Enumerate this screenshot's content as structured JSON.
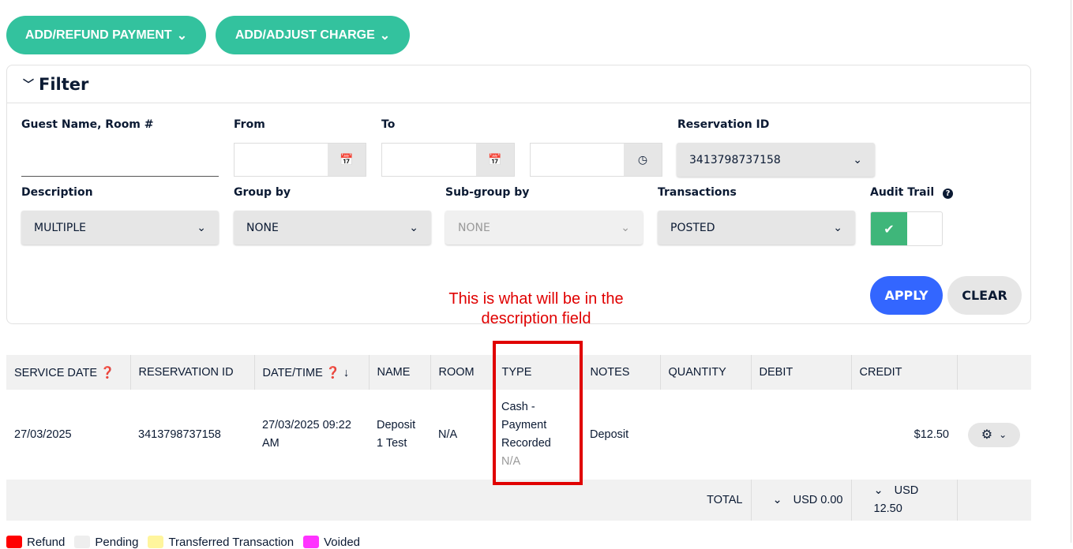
{
  "toolbar": {
    "add_refund_payment": "ADD/REFUND PAYMENT",
    "add_adjust_charge": "ADD/ADJUST CHARGE"
  },
  "filter": {
    "title": "Filter",
    "guest_label": "Guest Name, Room #",
    "guest_value": "",
    "from_label": "From",
    "to_label": "To",
    "reservation_label": "Reservation ID",
    "reservation_value": "3413798737158",
    "description_label": "Description",
    "description_value": "MULTIPLE",
    "group_label": "Group by",
    "group_value": "NONE",
    "subgroup_label": "Sub-group by",
    "subgroup_value": "NONE",
    "transactions_label": "Transactions",
    "transactions_value": "POSTED",
    "audit_label": "Audit Trail",
    "audit_on": true,
    "apply": "APPLY",
    "clear": "CLEAR"
  },
  "annotation": {
    "text": "This is what will be in the description field",
    "color": "#e00000"
  },
  "table": {
    "headers": [
      "SERVICE DATE",
      "RESERVATION ID",
      "DATE/TIME",
      "NAME",
      "ROOM",
      "TYPE",
      "NOTES",
      "QUANTITY",
      "DEBIT",
      "CREDIT"
    ],
    "rows": [
      {
        "service_date": "27/03/2025",
        "reservation_id": "3413798737158",
        "datetime": "27/03/2025 09:22 AM",
        "name": "Deposit 1 Test",
        "room": "N/A",
        "type": "Cash - Payment Recorded",
        "type_sub": "N/A",
        "notes": "Deposit",
        "quantity": "",
        "debit": "",
        "credit": "$12.50"
      }
    ],
    "total_label": "TOTAL",
    "total_debit": "USD 0.00",
    "total_credit": "USD 12.50"
  },
  "legend": [
    {
      "label": "Refund",
      "color": "#ff0000"
    },
    {
      "label": "Pending",
      "color": "#eeeeee"
    },
    {
      "label": "Transferred Transaction",
      "color": "#fff59d"
    },
    {
      "label": "Voided",
      "color": "#ff33ff"
    }
  ],
  "colors": {
    "accent": "#33c29e",
    "apply": "#3366ff",
    "toggle_on": "#3fb67a"
  }
}
